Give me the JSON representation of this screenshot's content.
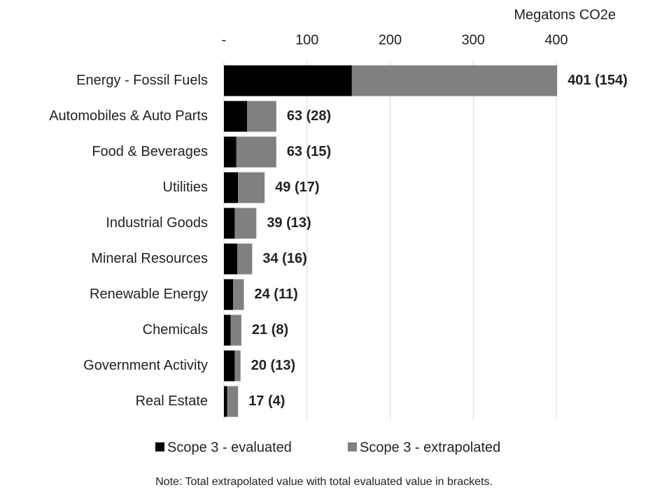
{
  "chart_data": {
    "type": "bar",
    "orientation": "horizontal",
    "stacked": true,
    "x_label": "Megatons CO2e",
    "note": "Note: Total extrapolated value with total evaluated value in brackets.",
    "categories": [
      "Energy - Fossil Fuels",
      "Automobiles & Auto Parts",
      "Food & Beverages",
      "Utilities",
      "Industrial Goods",
      "Mineral Resources",
      "Renewable Energy",
      "Chemicals",
      "Government Activity",
      "Real Estate"
    ],
    "series": [
      {
        "name": "Scope 3 - evaluated",
        "color": "#000000",
        "values": [
          154,
          28,
          15,
          17,
          13,
          16,
          11,
          8,
          13,
          4
        ]
      },
      {
        "name": "Scope 3 - extrapolated",
        "color": "#808080",
        "values": [
          247,
          35,
          48,
          32,
          26,
          18,
          13,
          13,
          7,
          13
        ]
      }
    ],
    "labels": [
      "401 (154)",
      "63 (28)",
      "63 (15)",
      "49 (17)",
      "39 (13)",
      "34 (16)",
      "24 (11)",
      "21 (8)",
      "20 (13)",
      "17 (4)"
    ],
    "xlim": [
      0,
      400
    ],
    "xticks": [
      {
        "value": 0,
        "label": "-"
      },
      100,
      200,
      300,
      400
    ],
    "grid": true,
    "legend": "bottom"
  }
}
